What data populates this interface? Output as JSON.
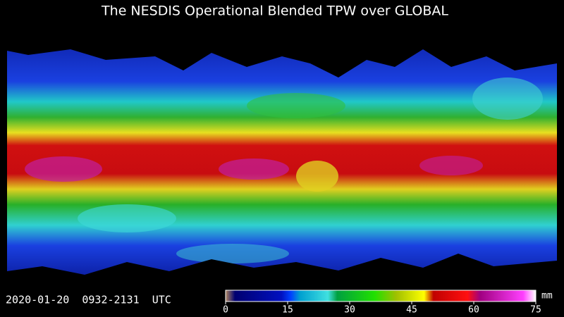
{
  "title": "The NESDIS Operational Blended TPW over GLOBAL",
  "timestamp": "2020-01-20  0932-2131  UTC",
  "colorbar": {
    "unit": "mm",
    "range": [
      0,
      75
    ],
    "ticks": [
      0,
      15,
      30,
      45,
      60,
      75
    ]
  }
}
